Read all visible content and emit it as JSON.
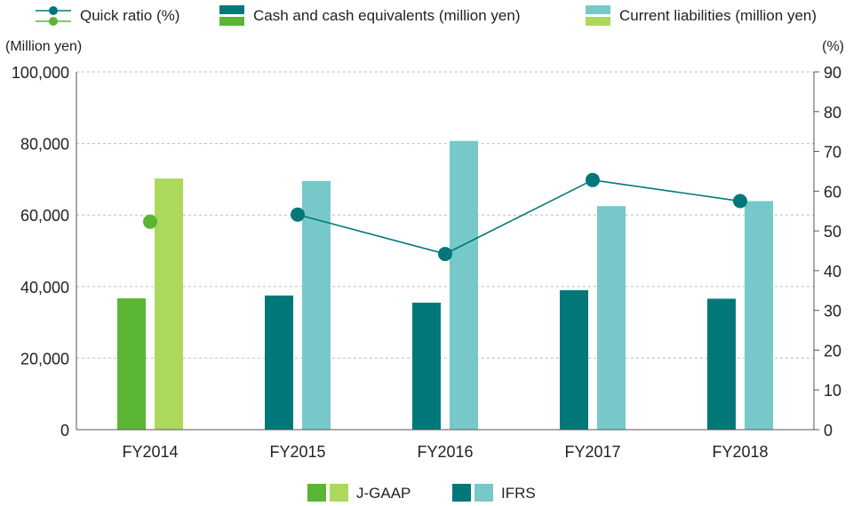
{
  "chart_data": {
    "type": "bar",
    "categories": [
      "FY2014",
      "FY2015",
      "FY2016",
      "FY2017",
      "FY2018"
    ],
    "y_left": {
      "unit_label": "(Million yen)",
      "ticks": [
        "0",
        "20,000",
        "40,000",
        "60,000",
        "80,000",
        "100,000"
      ],
      "range": [
        0,
        100000
      ]
    },
    "y_right": {
      "unit_label": "(%)",
      "ticks": [
        "0",
        "10",
        "20",
        "30",
        "40",
        "50",
        "60",
        "70",
        "80",
        "90"
      ],
      "range": [
        0,
        90
      ]
    },
    "series": [
      {
        "name": "Cash and cash equivalents (million yen)",
        "kind": "bar",
        "axis": "left",
        "values": [
          36700,
          37500,
          35500,
          39000,
          36600
        ]
      },
      {
        "name": "Current liabilities (million yen)",
        "kind": "bar",
        "axis": "left",
        "values": [
          70200,
          69500,
          80700,
          62500,
          63900
        ]
      },
      {
        "name": "Quick ratio (%)",
        "kind": "line",
        "axis": "right",
        "values": [
          52.3,
          54.1,
          44.2,
          62.8,
          57.5
        ]
      }
    ],
    "standards": [
      {
        "label": "J-GAAP",
        "categories": [
          "FY2014"
        ],
        "colors": {
          "cash": "#5bb535",
          "liab": "#acd95b",
          "ratio": "#5bb535"
        }
      },
      {
        "label": "IFRS",
        "categories": [
          "FY2015",
          "FY2016",
          "FY2017",
          "FY2018"
        ],
        "colors": {
          "cash": "#00787a",
          "liab": "#77c9c9",
          "ratio": "#00787a"
        }
      }
    ],
    "legend_top": [
      {
        "label": "Quick ratio (%)"
      },
      {
        "label": "Cash and cash equivalents (million yen)"
      },
      {
        "label": "Current liabilities (million yen)"
      }
    ],
    "legend_bottom": [
      {
        "label": "J-GAAP"
      },
      {
        "label": "IFRS"
      }
    ],
    "grid": true,
    "legend_position": "top"
  }
}
